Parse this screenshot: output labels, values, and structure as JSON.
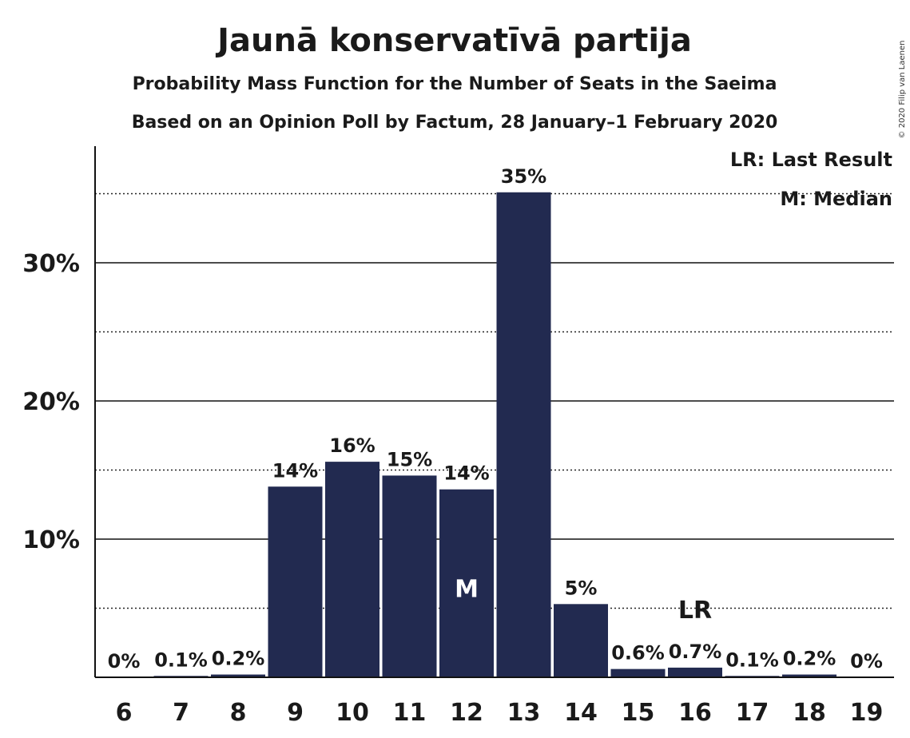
{
  "chart_data": {
    "type": "bar",
    "title": "Jaunā konservatīvā partija",
    "subtitle_1": "Probability Mass Function for the Number of Seats in the Saeima",
    "subtitle_2": "Based on an Opinion Poll by Factum, 28 January–1 February 2020",
    "copyright": "© 2020 Filip van Laenen",
    "categories": [
      "6",
      "7",
      "8",
      "9",
      "10",
      "11",
      "12",
      "13",
      "14",
      "15",
      "16",
      "17",
      "18",
      "19"
    ],
    "values": [
      0,
      0.1,
      0.2,
      13.8,
      15.6,
      14.6,
      13.6,
      35.1,
      5.3,
      0.6,
      0.7,
      0.1,
      0.2,
      0
    ],
    "data_labels": [
      "0%",
      "0.1%",
      "0.2%",
      "14%",
      "16%",
      "15%",
      "14%",
      "35%",
      "5%",
      "0.6%",
      "0.7%",
      "0.1%",
      "0.2%",
      "0%"
    ],
    "ylim": [
      0,
      38
    ],
    "y_major_ticks": [
      10,
      20,
      30
    ],
    "y_tick_labels": [
      "10%",
      "20%",
      "30%"
    ],
    "y_minor_ticks": [
      5,
      15,
      25,
      35
    ],
    "median_seat": "12",
    "median_marker": "M",
    "last_result_seat": "16",
    "last_result_marker": "LR",
    "legend": [
      "LR: Last Result",
      "M: Median"
    ],
    "legend_position": "top-right",
    "bar_color": "#222a50",
    "grid": true
  }
}
